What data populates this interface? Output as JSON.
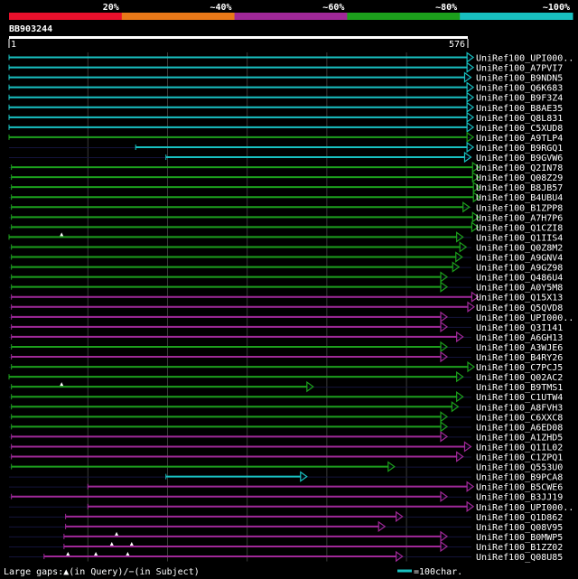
{
  "chart_data": {
    "type": "alignment",
    "title": "BB903244",
    "query_range": {
      "start": "1",
      "end": "576"
    },
    "query_length": 576,
    "color_scale": [
      {
        "label": "20%",
        "color": "#e8102c"
      },
      {
        "label": "~40%",
        "color": "#e87818"
      },
      {
        "label": "~60%",
        "color": "#a02898"
      },
      {
        "label": "~80%",
        "color": "#1ca01c"
      },
      {
        "label": "~100%",
        "color": "#18c0c0"
      }
    ],
    "hits": [
      {
        "name": "UniRef100_UPI000..",
        "start": 1,
        "end": 576,
        "color": "#18c0c0",
        "big_gaps": []
      },
      {
        "name": "UniRef100_A7PVI7",
        "start": 1,
        "end": 576,
        "color": "#18c0c0",
        "big_gaps": []
      },
      {
        "name": "UniRef100_B9NDN5",
        "start": 1,
        "end": 573,
        "color": "#18c0c0",
        "big_gaps": []
      },
      {
        "name": "UniRef100_Q6K683",
        "start": 1,
        "end": 576,
        "color": "#18c0c0",
        "big_gaps": []
      },
      {
        "name": "UniRef100_B9F3Z4",
        "start": 1,
        "end": 576,
        "color": "#18c0c0",
        "big_gaps": []
      },
      {
        "name": "UniRef100_B8AE35",
        "start": 1,
        "end": 576,
        "color": "#18c0c0",
        "big_gaps": []
      },
      {
        "name": "UniRef100_Q8L831",
        "start": 1,
        "end": 576,
        "color": "#18c0c0",
        "big_gaps": []
      },
      {
        "name": "UniRef100_C5XUD8",
        "start": 1,
        "end": 576,
        "color": "#18c0c0",
        "big_gaps": []
      },
      {
        "name": "UniRef100_A9TLP4",
        "start": 1,
        "end": 576,
        "color": "#1ca01c",
        "big_gaps": []
      },
      {
        "name": "UniRef100_B9RGQ1",
        "start": 160,
        "end": 576,
        "color": "#18c0c0",
        "big_gaps": []
      },
      {
        "name": "UniRef100_B9GVW6",
        "start": 198,
        "end": 573,
        "color": "#18c0c0",
        "big_gaps": []
      },
      {
        "name": "UniRef100_Q2IN78",
        "start": 4,
        "end": 583,
        "color": "#1ca01c",
        "big_gaps": []
      },
      {
        "name": "UniRef100_Q08Z29",
        "start": 4,
        "end": 583,
        "color": "#1ca01c",
        "big_gaps": []
      },
      {
        "name": "UniRef100_B8JB57",
        "start": 4,
        "end": 584,
        "color": "#1ca01c",
        "big_gaps": []
      },
      {
        "name": "UniRef100_B4UBU4",
        "start": 4,
        "end": 584,
        "color": "#1ca01c",
        "big_gaps": []
      },
      {
        "name": "UniRef100_B1ZPP8",
        "start": 4,
        "end": 571,
        "color": "#1ca01c",
        "big_gaps": []
      },
      {
        "name": "UniRef100_A7H7P6",
        "start": 4,
        "end": 583,
        "color": "#1ca01c",
        "big_gaps": []
      },
      {
        "name": "UniRef100_Q1CZI8",
        "start": 4,
        "end": 582,
        "color": "#1ca01c",
        "big_gaps": []
      },
      {
        "name": "UniRef100_Q1IIS4",
        "start": 1,
        "end": 563,
        "color": "#1ca01c",
        "big_gaps": [
          67
        ]
      },
      {
        "name": "UniRef100_Q0Z8M2",
        "start": 4,
        "end": 567,
        "color": "#1ca01c",
        "big_gaps": []
      },
      {
        "name": "UniRef100_A9GNV4",
        "start": 4,
        "end": 562,
        "color": "#1ca01c",
        "big_gaps": []
      },
      {
        "name": "UniRef100_A9GZ98",
        "start": 4,
        "end": 558,
        "color": "#1ca01c",
        "big_gaps": []
      },
      {
        "name": "UniRef100_Q486U4",
        "start": 4,
        "end": 543,
        "color": "#1ca01c",
        "big_gaps": []
      },
      {
        "name": "UniRef100_A0Y5M8",
        "start": 4,
        "end": 543,
        "color": "#1ca01c",
        "big_gaps": []
      },
      {
        "name": "UniRef100_Q15X13",
        "start": 4,
        "end": 582,
        "color": "#a02898",
        "big_gaps": []
      },
      {
        "name": "UniRef100_Q5QVD8",
        "start": 4,
        "end": 577,
        "color": "#a02898",
        "big_gaps": []
      },
      {
        "name": "UniRef100_UPI000..",
        "start": 4,
        "end": 543,
        "color": "#a02898",
        "big_gaps": []
      },
      {
        "name": "UniRef100_Q3I141",
        "start": 4,
        "end": 543,
        "color": "#a02898",
        "big_gaps": []
      },
      {
        "name": "UniRef100_A6GH13",
        "start": 4,
        "end": 563,
        "color": "#a02898",
        "big_gaps": []
      },
      {
        "name": "UniRef100_A3WJE6",
        "start": 4,
        "end": 543,
        "color": "#1ca01c",
        "big_gaps": []
      },
      {
        "name": "UniRef100_B4RY26",
        "start": 4,
        "end": 543,
        "color": "#a02898",
        "big_gaps": []
      },
      {
        "name": "UniRef100_C7PCJ5",
        "start": 4,
        "end": 577,
        "color": "#1ca01c",
        "big_gaps": []
      },
      {
        "name": "UniRef100_Q02AC2",
        "start": 1,
        "end": 563,
        "color": "#1ca01c",
        "big_gaps": []
      },
      {
        "name": "UniRef100_B9TMS1",
        "start": 4,
        "end": 375,
        "color": "#1ca01c",
        "big_gaps": [
          67
        ]
      },
      {
        "name": "UniRef100_C1UTW4",
        "start": 4,
        "end": 563,
        "color": "#1ca01c",
        "big_gaps": []
      },
      {
        "name": "UniRef100_A8FVH3",
        "start": 4,
        "end": 557,
        "color": "#1ca01c",
        "big_gaps": []
      },
      {
        "name": "UniRef100_C6XXC8",
        "start": 4,
        "end": 543,
        "color": "#1ca01c",
        "big_gaps": []
      },
      {
        "name": "UniRef100_A6ED08",
        "start": 4,
        "end": 543,
        "color": "#1ca01c",
        "big_gaps": []
      },
      {
        "name": "UniRef100_A1ZHD5",
        "start": 4,
        "end": 543,
        "color": "#a02898",
        "big_gaps": []
      },
      {
        "name": "UniRef100_Q1IL02",
        "start": 4,
        "end": 573,
        "color": "#a02898",
        "big_gaps": []
      },
      {
        "name": "UniRef100_C1ZPQ1",
        "start": 4,
        "end": 563,
        "color": "#a02898",
        "big_gaps": []
      },
      {
        "name": "UniRef100_Q553U0",
        "start": 4,
        "end": 477,
        "color": "#1ca01c",
        "big_gaps": []
      },
      {
        "name": "UniRef100_B9PCA8",
        "start": 198,
        "end": 367,
        "color": "#18c0c0",
        "big_gaps": []
      },
      {
        "name": "UniRef100_B5CWE6",
        "start": 100,
        "end": 576,
        "color": "#a02898",
        "big_gaps": []
      },
      {
        "name": "UniRef100_B3JJ19",
        "start": 4,
        "end": 543,
        "color": "#a02898",
        "big_gaps": []
      },
      {
        "name": "UniRef100_UPI000..",
        "start": 100,
        "end": 576,
        "color": "#a02898",
        "big_gaps": []
      },
      {
        "name": "UniRef100_Q1D862",
        "start": 72,
        "end": 487,
        "color": "#a02898",
        "big_gaps": []
      },
      {
        "name": "UniRef100_Q08V95",
        "start": 72,
        "end": 465,
        "color": "#a02898",
        "big_gaps": []
      },
      {
        "name": "UniRef100_B0MWP5",
        "start": 70,
        "end": 543,
        "color": "#a02898",
        "big_gaps": [
          136
        ]
      },
      {
        "name": "UniRef100_B1ZZ02",
        "start": 70,
        "end": 543,
        "color": "#a02898",
        "big_gaps": [
          130,
          155
        ]
      },
      {
        "name": "UniRef100_Q08U85",
        "start": 45,
        "end": 487,
        "color": "#a02898",
        "big_gaps": [
          75,
          110,
          150
        ]
      }
    ],
    "legend": {
      "gaps": "Large gaps:▲(in Query)/−(in Subject)",
      "scale": "=100char."
    }
  }
}
